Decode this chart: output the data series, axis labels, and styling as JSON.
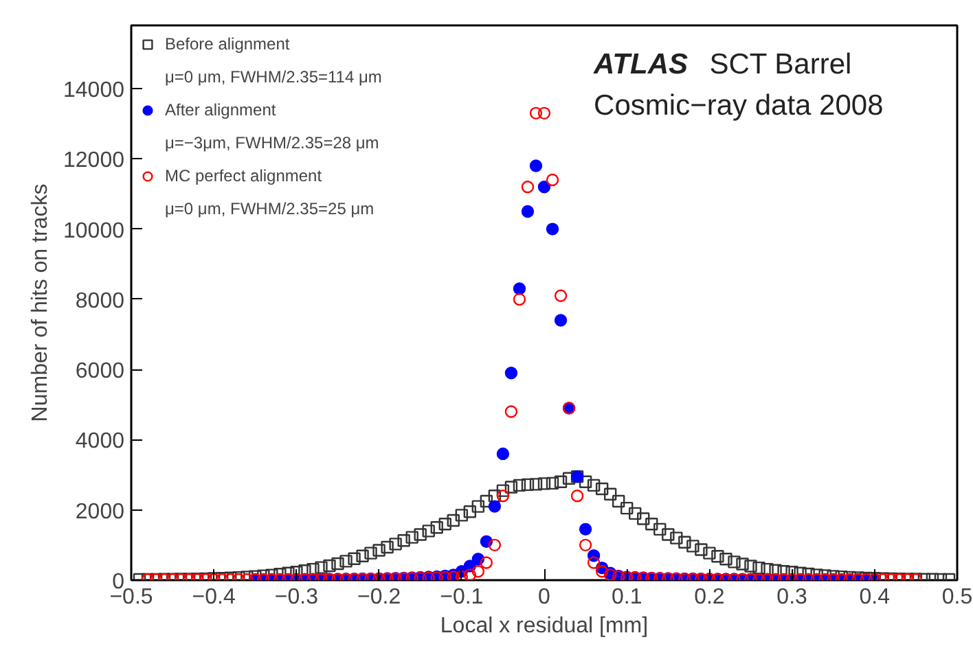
{
  "chart_data": {
    "type": "scatter",
    "xlabel": "Local x residual [mm]",
    "ylabel": "Number of hits on tracks",
    "xlim": [
      -0.5,
      0.5
    ],
    "ylim": [
      0,
      15800
    ],
    "xticks": [
      {
        "value": -0.5,
        "label": "−0.5"
      },
      {
        "value": -0.4,
        "label": "−0.4"
      },
      {
        "value": -0.3,
        "label": "−0.3"
      },
      {
        "value": -0.2,
        "label": "−0.2"
      },
      {
        "value": -0.1,
        "label": "−0.1"
      },
      0,
      0.1,
      0.2,
      0.3,
      0.4,
      0.5
    ],
    "yticks": [
      0,
      2000,
      4000,
      6000,
      8000,
      10000,
      12000,
      14000
    ],
    "grid": false,
    "legend": "top left",
    "annotations": [
      "μ=0 μm, FWHM/2.35=114 μm",
      "μ=−3μm, FWHM/2.35=28 μm",
      "μ=0 μm, FWHM/2.35=25 μm",
      "ATLAS",
      "SCT Barrel",
      "Cosmic−ray data 2008"
    ],
    "series": [
      {
        "name": "Before alignment",
        "color": "#333333",
        "marker": "square",
        "x": [
          -0.49,
          -0.48,
          -0.47,
          -0.46,
          -0.45,
          -0.44,
          -0.43,
          -0.42,
          -0.41,
          -0.4,
          -0.39,
          -0.38,
          -0.37,
          -0.36,
          -0.35,
          -0.34,
          -0.33,
          -0.32,
          -0.31,
          -0.3,
          -0.29,
          -0.28,
          -0.27,
          -0.26,
          -0.25,
          -0.24,
          -0.23,
          -0.22,
          -0.21,
          -0.2,
          -0.19,
          -0.18,
          -0.17,
          -0.16,
          -0.15,
          -0.14,
          -0.13,
          -0.12,
          -0.11,
          -0.1,
          -0.09,
          -0.08,
          -0.07,
          -0.06,
          -0.05,
          -0.04,
          -0.03,
          -0.02,
          -0.01,
          0.0,
          0.01,
          0.02,
          0.03,
          0.04,
          0.05,
          0.06,
          0.07,
          0.08,
          0.09,
          0.1,
          0.11,
          0.12,
          0.13,
          0.14,
          0.15,
          0.16,
          0.17,
          0.18,
          0.19,
          0.2,
          0.21,
          0.22,
          0.23,
          0.24,
          0.25,
          0.26,
          0.27,
          0.28,
          0.29,
          0.3,
          0.31,
          0.32,
          0.33,
          0.34,
          0.35,
          0.36,
          0.37,
          0.38,
          0.39,
          0.4,
          0.41,
          0.42,
          0.43,
          0.44,
          0.45,
          0.46,
          0.47,
          0.48,
          0.49
        ],
        "values": [
          20,
          20,
          20,
          25,
          25,
          30,
          30,
          35,
          40,
          50,
          55,
          65,
          75,
          90,
          105,
          125,
          145,
          170,
          200,
          230,
          270,
          310,
          360,
          410,
          470,
          540,
          610,
          690,
          770,
          850,
          940,
          1030,
          1130,
          1220,
          1300,
          1400,
          1500,
          1600,
          1700,
          1850,
          1950,
          2100,
          2250,
          2400,
          2550,
          2650,
          2700,
          2720,
          2730,
          2750,
          2760,
          2800,
          2900,
          2950,
          2800,
          2700,
          2600,
          2450,
          2250,
          2050,
          1900,
          1750,
          1600,
          1450,
          1300,
          1200,
          1080,
          970,
          870,
          770,
          680,
          600,
          520,
          460,
          400,
          350,
          310,
          280,
          250,
          230,
          200,
          175,
          150,
          130,
          110,
          95,
          80,
          70,
          60,
          55,
          45,
          40,
          35,
          30,
          30,
          25,
          25,
          20,
          20
        ]
      },
      {
        "name": "After alignment",
        "color": "#0000ff",
        "marker": "circle",
        "x": [
          -0.35,
          -0.34,
          -0.33,
          -0.32,
          -0.31,
          -0.3,
          -0.29,
          -0.28,
          -0.27,
          -0.26,
          -0.25,
          -0.24,
          -0.23,
          -0.22,
          -0.21,
          -0.2,
          -0.19,
          -0.18,
          -0.17,
          -0.16,
          -0.15,
          -0.14,
          -0.13,
          -0.12,
          -0.11,
          -0.1,
          -0.09,
          -0.08,
          -0.07,
          -0.06,
          -0.05,
          -0.04,
          -0.03,
          -0.02,
          -0.01,
          0.0,
          0.01,
          0.02,
          0.03,
          0.04,
          0.05,
          0.06,
          0.07,
          0.08,
          0.09,
          0.1,
          0.11,
          0.12,
          0.13,
          0.14,
          0.15,
          0.16,
          0.17,
          0.18,
          0.19,
          0.2,
          0.21,
          0.22,
          0.23,
          0.24,
          0.25,
          0.26,
          0.27,
          0.28,
          0.29,
          0.3,
          0.31,
          0.32,
          0.33,
          0.34,
          0.35,
          0.36,
          0.37,
          0.38,
          0.39,
          0.4
        ],
        "values": [
          20,
          20,
          20,
          20,
          20,
          25,
          25,
          25,
          30,
          30,
          30,
          35,
          35,
          40,
          40,
          45,
          50,
          55,
          60,
          70,
          80,
          90,
          100,
          120,
          150,
          250,
          400,
          600,
          1100,
          2100,
          3600,
          5900,
          8300,
          10500,
          11800,
          11200,
          10000,
          7400,
          4900,
          2950,
          1450,
          700,
          350,
          200,
          120,
          90,
          80,
          70,
          60,
          55,
          50,
          45,
          40,
          40,
          35,
          35,
          30,
          30,
          30,
          25,
          25,
          25,
          25,
          20,
          20,
          20,
          20,
          20,
          20,
          20,
          20,
          20,
          20,
          20,
          20,
          20
        ]
      },
      {
        "name": "MC perfect alignment",
        "color": "#ff0000",
        "marker": "circle",
        "x": [
          -0.48,
          -0.47,
          -0.46,
          -0.45,
          -0.44,
          -0.43,
          -0.42,
          -0.41,
          -0.4,
          -0.39,
          -0.38,
          -0.37,
          -0.36,
          -0.35,
          -0.34,
          -0.33,
          -0.32,
          -0.31,
          -0.3,
          -0.29,
          -0.28,
          -0.27,
          -0.26,
          -0.25,
          -0.24,
          -0.23,
          -0.22,
          -0.21,
          -0.2,
          -0.19,
          -0.18,
          -0.17,
          -0.16,
          -0.15,
          -0.14,
          -0.13,
          -0.12,
          -0.11,
          -0.1,
          -0.09,
          -0.08,
          -0.07,
          -0.06,
          -0.05,
          -0.04,
          -0.03,
          -0.02,
          -0.01,
          0.0,
          0.01,
          0.02,
          0.03,
          0.04,
          0.05,
          0.06,
          0.07,
          0.08,
          0.09,
          0.1,
          0.11,
          0.12,
          0.13,
          0.14,
          0.15,
          0.16,
          0.17,
          0.18,
          0.19,
          0.2,
          0.21,
          0.22,
          0.23,
          0.24,
          0.25,
          0.26,
          0.27,
          0.28,
          0.29,
          0.3,
          0.31,
          0.32,
          0.33,
          0.34,
          0.35,
          0.36,
          0.37,
          0.38,
          0.39,
          0.4,
          0.41,
          0.42,
          0.43,
          0.44,
          0.45
        ],
        "values": [
          20,
          20,
          20,
          20,
          20,
          20,
          20,
          20,
          20,
          20,
          20,
          20,
          20,
          20,
          20,
          20,
          20,
          20,
          20,
          20,
          25,
          25,
          25,
          30,
          30,
          30,
          35,
          35,
          40,
          40,
          45,
          50,
          55,
          60,
          65,
          70,
          80,
          90,
          100,
          150,
          250,
          500,
          1000,
          2400,
          4800,
          8000,
          11200,
          13300,
          13300,
          11400,
          8100,
          4900,
          2400,
          1000,
          500,
          250,
          150,
          100,
          80,
          70,
          60,
          55,
          50,
          45,
          40,
          35,
          35,
          30,
          30,
          30,
          25,
          25,
          25,
          25,
          20,
          20,
          20,
          20,
          20,
          20,
          20,
          20,
          20,
          20,
          20,
          20,
          20,
          20,
          20,
          20,
          20,
          20,
          20,
          20
        ]
      }
    ]
  }
}
